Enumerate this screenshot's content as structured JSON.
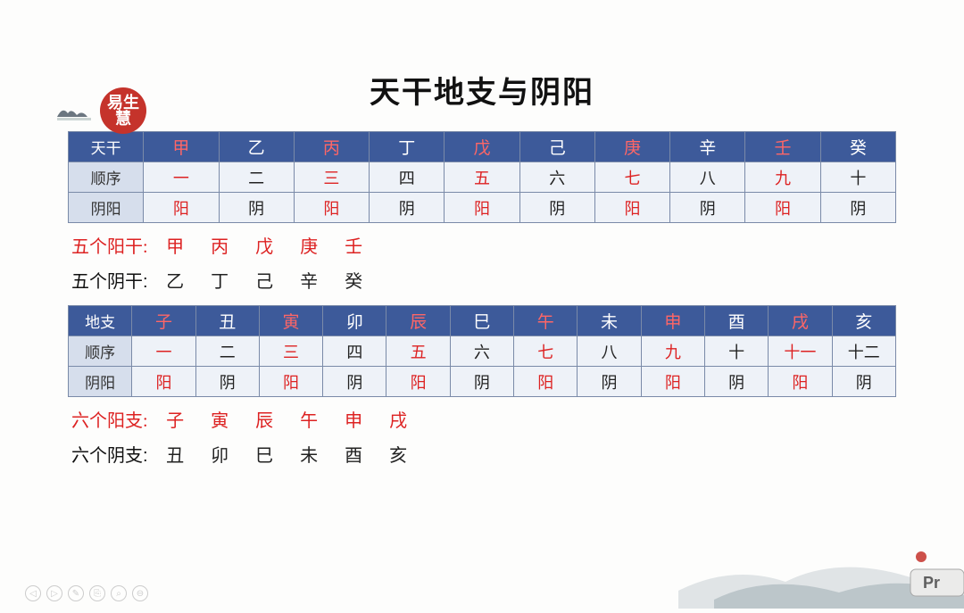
{
  "seal_text": "易生慧",
  "title": "天干地支与阴阳",
  "colors": {
    "header_bg": "#3d5a9a",
    "row_label_bg": "#d6deec",
    "row_body_bg": "#eef2f8",
    "red": "#d22",
    "black": "#222",
    "seal_bg": "#c5332b"
  },
  "table1": {
    "header_label": "天干",
    "header_cells": [
      {
        "t": "甲",
        "c": "wred"
      },
      {
        "t": "乙",
        "c": "w"
      },
      {
        "t": "丙",
        "c": "wred"
      },
      {
        "t": "丁",
        "c": "w"
      },
      {
        "t": "戊",
        "c": "wred"
      },
      {
        "t": "己",
        "c": "w"
      },
      {
        "t": "庚",
        "c": "wred"
      },
      {
        "t": "辛",
        "c": "w"
      },
      {
        "t": "壬",
        "c": "wred"
      },
      {
        "t": "癸",
        "c": "w"
      }
    ],
    "row_order_label": "顺序",
    "row_order": [
      {
        "t": "一",
        "c": "red"
      },
      {
        "t": "二",
        "c": "blk"
      },
      {
        "t": "三",
        "c": "red"
      },
      {
        "t": "四",
        "c": "blk"
      },
      {
        "t": "五",
        "c": "red"
      },
      {
        "t": "六",
        "c": "blk"
      },
      {
        "t": "七",
        "c": "red"
      },
      {
        "t": "八",
        "c": "blk"
      },
      {
        "t": "九",
        "c": "red"
      },
      {
        "t": "十",
        "c": "blk"
      }
    ],
    "row_yy_label": "阴阳",
    "row_yy": [
      {
        "t": "阳",
        "c": "red"
      },
      {
        "t": "阴",
        "c": "blk"
      },
      {
        "t": "阳",
        "c": "red"
      },
      {
        "t": "阴",
        "c": "blk"
      },
      {
        "t": "阳",
        "c": "red"
      },
      {
        "t": "阴",
        "c": "blk"
      },
      {
        "t": "阳",
        "c": "red"
      },
      {
        "t": "阴",
        "c": "blk"
      },
      {
        "t": "阳",
        "c": "red"
      },
      {
        "t": "阴",
        "c": "blk"
      }
    ]
  },
  "desc1a": {
    "lead": "五个阳干:",
    "lead_c": "red",
    "items": [
      "甲",
      "丙",
      "戊",
      "庚",
      "壬"
    ],
    "items_c": "red"
  },
  "desc1b": {
    "lead": "五个阴干:",
    "lead_c": "blk",
    "items": [
      "乙",
      "丁",
      "己",
      "辛",
      "癸"
    ],
    "items_c": "blk"
  },
  "table2": {
    "header_label": "地支",
    "header_cells": [
      {
        "t": "子",
        "c": "wred"
      },
      {
        "t": "丑",
        "c": "w"
      },
      {
        "t": "寅",
        "c": "wred"
      },
      {
        "t": "卯",
        "c": "w"
      },
      {
        "t": "辰",
        "c": "wred"
      },
      {
        "t": "巳",
        "c": "w"
      },
      {
        "t": "午",
        "c": "wred"
      },
      {
        "t": "未",
        "c": "w"
      },
      {
        "t": "申",
        "c": "wred"
      },
      {
        "t": "酉",
        "c": "w"
      },
      {
        "t": "戌",
        "c": "wred"
      },
      {
        "t": "亥",
        "c": "w"
      }
    ],
    "row_order_label": "顺序",
    "row_order": [
      {
        "t": "一",
        "c": "red"
      },
      {
        "t": "二",
        "c": "blk"
      },
      {
        "t": "三",
        "c": "red"
      },
      {
        "t": "四",
        "c": "blk"
      },
      {
        "t": "五",
        "c": "red"
      },
      {
        "t": "六",
        "c": "blk"
      },
      {
        "t": "七",
        "c": "red"
      },
      {
        "t": "八",
        "c": "blk"
      },
      {
        "t": "九",
        "c": "red"
      },
      {
        "t": "十",
        "c": "blk"
      },
      {
        "t": "十一",
        "c": "red"
      },
      {
        "t": "十二",
        "c": "blk"
      }
    ],
    "row_yy_label": "阴阳",
    "row_yy": [
      {
        "t": "阳",
        "c": "red"
      },
      {
        "t": "阴",
        "c": "blk"
      },
      {
        "t": "阳",
        "c": "red"
      },
      {
        "t": "阴",
        "c": "blk"
      },
      {
        "t": "阳",
        "c": "red"
      },
      {
        "t": "阴",
        "c": "blk"
      },
      {
        "t": "阳",
        "c": "red"
      },
      {
        "t": "阴",
        "c": "blk"
      },
      {
        "t": "阳",
        "c": "red"
      },
      {
        "t": "阴",
        "c": "blk"
      },
      {
        "t": "阳",
        "c": "red"
      },
      {
        "t": "阴",
        "c": "blk"
      }
    ]
  },
  "desc2a": {
    "lead": "六个阳支:",
    "lead_c": "red",
    "items": [
      "子",
      "寅",
      "辰",
      "午",
      "申",
      "戌"
    ],
    "items_c": "red"
  },
  "desc2b": {
    "lead": "六个阴支:",
    "lead_c": "blk",
    "items": [
      "丑",
      "卯",
      "巳",
      "未",
      "酉",
      "亥"
    ],
    "items_c": "blk"
  },
  "controls": [
    "◁",
    "▷",
    "✎",
    "⎘",
    "⌕",
    "⊖"
  ]
}
